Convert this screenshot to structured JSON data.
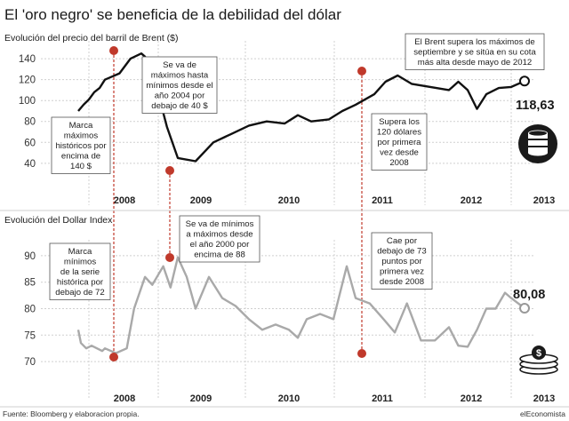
{
  "title": "El 'oro negro' se beneficia de la debilidad del dólar",
  "source": "Fuente: Bloomberg y elaboracion propia.",
  "brand": "elEconomista",
  "chart_data": [
    {
      "type": "line",
      "title": "Evolución del precio del barril de Brent ($)",
      "x_ticks": [
        "2008",
        "2009",
        "2010",
        "2011",
        "2012",
        "2013"
      ],
      "y_ticks": [
        40,
        60,
        80,
        100,
        120,
        140
      ],
      "ylim": [
        22,
        152
      ],
      "grid": true,
      "end_label": "118,63",
      "x": [
        2007.0,
        2007.2,
        2007.4,
        2007.6,
        2007.8,
        2008.0,
        2008.2,
        2008.35,
        2008.5,
        2008.55,
        2008.7,
        2008.85,
        2009.0,
        2009.2,
        2009.4,
        2009.6,
        2009.8,
        2010.0,
        2010.2,
        2010.35,
        2010.5,
        2010.7,
        2010.85,
        2011.0,
        2011.2,
        2011.32,
        2011.45,
        2011.6,
        2011.8,
        2012.0,
        2012.15,
        2012.3,
        2012.45,
        2012.6,
        2012.8,
        2013.0,
        2013.15
      ],
      "y": [
        90,
        96,
        101,
        108,
        112,
        120,
        126,
        140,
        145,
        142,
        115,
        75,
        45,
        42,
        60,
        68,
        76,
        80,
        78,
        86,
        80,
        82,
        90,
        96,
        106,
        118,
        124,
        116,
        113,
        110,
        118,
        110,
        92,
        106,
        112,
        113,
        118.63
      ],
      "annotations": [
        {
          "text": [
            "Marca",
            "máximos",
            "históricos por",
            "encima de",
            "140 $"
          ]
        },
        {
          "text": [
            "Se va de",
            "máximos hasta",
            "mínimos desde el",
            "año 2004 por",
            "debajo de 40 $"
          ]
        },
        {
          "text": [
            "El Brent supera los máximos de",
            "septiembre y se sitúa en su cota",
            "más alta desde mayo de 2012"
          ]
        },
        {
          "text": [
            "Supera los",
            "120 dólares",
            "por primera",
            "vez desde",
            "2008"
          ]
        }
      ]
    },
    {
      "type": "line",
      "title": "Evolución del Dollar Index",
      "x_ticks": [
        "2008",
        "2009",
        "2010",
        "2011",
        "2012",
        "2013"
      ],
      "y_ticks": [
        70,
        75,
        80,
        85,
        90
      ],
      "ylim": [
        67.5,
        92
      ],
      "grid": true,
      "end_label": "80,08",
      "x": [
        2007.0,
        2007.1,
        2007.3,
        2007.5,
        2007.7,
        2007.9,
        2008.0,
        2008.15,
        2008.3,
        2008.4,
        2008.55,
        2008.65,
        2008.8,
        2008.9,
        2009.0,
        2009.1,
        2009.2,
        2009.35,
        2009.5,
        2009.65,
        2009.8,
        2009.95,
        2010.1,
        2010.25,
        2010.35,
        2010.45,
        2010.6,
        2010.75,
        2010.9,
        2011.0,
        2011.15,
        2011.3,
        2011.42,
        2011.55,
        2011.7,
        2011.85,
        2012.0,
        2012.15,
        2012.3,
        2012.45,
        2012.6,
        2012.75,
        2012.9,
        2013.0,
        2013.15
      ],
      "y": [
        76,
        73.5,
        72.5,
        73,
        72.5,
        72,
        72.5,
        71.6,
        72.5,
        80,
        86,
        84.5,
        88,
        84,
        89.7,
        86,
        80,
        86,
        82,
        80.5,
        78,
        76,
        77,
        76,
        74.5,
        78,
        79,
        78,
        88,
        82,
        81,
        78,
        75.5,
        81,
        74,
        74,
        76.5,
        73,
        72.8,
        76,
        80,
        80,
        83,
        82,
        80.08
      ],
      "annotations": [
        {
          "text": [
            "Marca",
            "mínimos",
            "de la serie",
            "histórica por",
            "debajo de 72"
          ]
        },
        {
          "text": [
            "Se va de mínimos",
            "a máximos desde",
            "el año 2000 por",
            "encima de 88"
          ]
        },
        {
          "text": [
            "Cae por",
            "debajo de 73",
            "puntos por",
            "primera vez",
            "desde 2008"
          ]
        }
      ]
    }
  ]
}
